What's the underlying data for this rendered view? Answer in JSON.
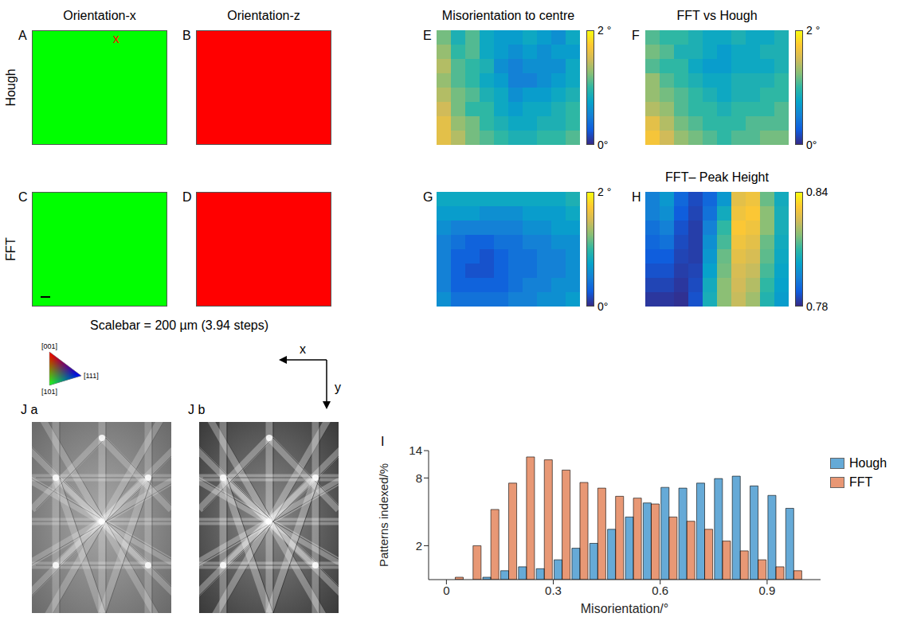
{
  "row_labels": [
    "Hough",
    "FFT"
  ],
  "scalebar": {
    "panel": "C",
    "text": "Scalebar = 200 µm (3.94 steps)"
  },
  "ipf_labels": [
    "[001]",
    "[101]",
    "[111]"
  ],
  "axis_arrows": [
    "x",
    "y"
  ],
  "patterns": [
    "J a",
    "J b"
  ],
  "chart_data": [
    {
      "label": "A",
      "type": "map",
      "title": "Orientation-x",
      "color": "#00ff00",
      "annotation": {
        "text": "x",
        "color": "#ff0000"
      }
    },
    {
      "label": "B",
      "type": "map",
      "title": "Orientation-z",
      "color": "#ff0000"
    },
    {
      "label": "C",
      "type": "map",
      "color": "#00ff00"
    },
    {
      "label": "D",
      "type": "map",
      "color": "#ff0000"
    },
    {
      "label": "E",
      "type": "heatmap",
      "title": "Misorientation to centre",
      "tick_labels": false,
      "cells": [
        [
          1.2,
          0.9,
          1.1,
          0.8,
          0.7,
          0.7,
          0.8,
          0.7,
          0.6,
          0.8
        ],
        [
          1.3,
          1.0,
          1.1,
          0.8,
          0.7,
          0.6,
          0.7,
          0.6,
          0.7,
          0.7
        ],
        [
          1.4,
          1.1,
          1.0,
          0.9,
          0.6,
          0.5,
          0.6,
          0.6,
          0.6,
          0.8
        ],
        [
          1.3,
          1.1,
          1.0,
          0.8,
          0.7,
          0.5,
          0.5,
          0.6,
          0.7,
          0.8
        ],
        [
          1.4,
          1.2,
          1.1,
          0.9,
          0.8,
          0.6,
          0.7,
          0.7,
          0.8,
          0.9
        ],
        [
          1.5,
          1.2,
          1.0,
          1.0,
          0.8,
          0.7,
          0.8,
          0.8,
          0.9,
          1.0
        ],
        [
          1.6,
          1.3,
          1.2,
          1.0,
          0.9,
          0.8,
          0.8,
          0.9,
          0.9,
          1.0
        ],
        [
          1.6,
          1.4,
          1.2,
          1.1,
          1.0,
          0.9,
          0.9,
          1.0,
          1.0,
          1.1
        ]
      ],
      "colorbar": {
        "range": [
          0,
          2
        ],
        "ticks": [
          {
            "value": 0,
            "label": "0°"
          },
          {
            "value": 2,
            "label": "2 °"
          }
        ]
      }
    },
    {
      "label": "F",
      "type": "heatmap",
      "title": "FFT vs Hough",
      "tick_labels": false,
      "cells": [
        [
          1.1,
          1.0,
          1.0,
          0.9,
          0.8,
          0.8,
          0.9,
          0.8,
          0.8,
          0.9
        ],
        [
          1.2,
          1.1,
          0.9,
          0.9,
          0.8,
          0.7,
          0.8,
          0.8,
          0.9,
          0.9
        ],
        [
          1.1,
          1.0,
          1.0,
          0.8,
          0.7,
          0.7,
          0.8,
          0.8,
          0.8,
          0.9
        ],
        [
          1.3,
          1.1,
          1.0,
          0.9,
          0.8,
          0.8,
          0.9,
          0.9,
          0.9,
          1.0
        ],
        [
          1.3,
          1.2,
          1.1,
          1.0,
          0.9,
          0.8,
          0.9,
          0.9,
          1.0,
          1.0
        ],
        [
          1.4,
          1.3,
          1.1,
          1.0,
          1.0,
          0.9,
          1.0,
          1.0,
          1.0,
          1.1
        ],
        [
          1.6,
          1.4,
          1.2,
          1.1,
          1.0,
          1.0,
          1.0,
          1.1,
          1.1,
          1.1
        ],
        [
          1.7,
          1.5,
          1.3,
          1.2,
          1.1,
          1.0,
          1.1,
          1.1,
          1.2,
          1.2
        ]
      ],
      "colorbar": {
        "range": [
          0,
          2
        ],
        "ticks": [
          {
            "value": 0,
            "label": "0°"
          },
          {
            "value": 2,
            "label": "2 °"
          }
        ]
      }
    },
    {
      "label": "G",
      "type": "heatmap",
      "tick_labels": false,
      "cells": [
        [
          0.8,
          0.8,
          0.8,
          0.8,
          0.8,
          0.8,
          0.8,
          0.8,
          0.8,
          0.9
        ],
        [
          0.7,
          0.7,
          0.7,
          0.6,
          0.6,
          0.6,
          0.7,
          0.7,
          0.7,
          0.8
        ],
        [
          0.6,
          0.5,
          0.5,
          0.5,
          0.5,
          0.5,
          0.6,
          0.6,
          0.7,
          0.7
        ],
        [
          0.5,
          0.4,
          0.3,
          0.3,
          0.4,
          0.4,
          0.5,
          0.5,
          0.6,
          0.6
        ],
        [
          0.5,
          0.3,
          0.3,
          0.2,
          0.3,
          0.4,
          0.4,
          0.5,
          0.5,
          0.6
        ],
        [
          0.5,
          0.3,
          0.2,
          0.2,
          0.3,
          0.4,
          0.4,
          0.5,
          0.5,
          0.6
        ],
        [
          0.5,
          0.3,
          0.3,
          0.3,
          0.3,
          0.4,
          0.5,
          0.5,
          0.6,
          0.6
        ],
        [
          0.6,
          0.4,
          0.4,
          0.4,
          0.4,
          0.5,
          0.5,
          0.6,
          0.6,
          0.7
        ]
      ],
      "colorbar": {
        "range": [
          0,
          2
        ],
        "ticks": [
          {
            "value": 0,
            "label": "0°"
          },
          {
            "value": 2,
            "label": "2 °"
          }
        ]
      }
    },
    {
      "label": "H",
      "type": "heatmap",
      "title": "FFT– Peak Height",
      "tick_labels": false,
      "cells": [
        [
          0.795,
          0.8,
          0.79,
          0.785,
          0.79,
          0.8,
          0.828,
          0.83,
          0.815,
          0.805
        ],
        [
          0.795,
          0.798,
          0.788,
          0.784,
          0.792,
          0.805,
          0.83,
          0.832,
          0.818,
          0.806
        ],
        [
          0.792,
          0.795,
          0.786,
          0.783,
          0.795,
          0.81,
          0.832,
          0.83,
          0.818,
          0.806
        ],
        [
          0.79,
          0.792,
          0.785,
          0.783,
          0.798,
          0.812,
          0.83,
          0.828,
          0.815,
          0.805
        ],
        [
          0.788,
          0.788,
          0.784,
          0.783,
          0.8,
          0.815,
          0.828,
          0.826,
          0.814,
          0.804
        ],
        [
          0.786,
          0.786,
          0.783,
          0.784,
          0.802,
          0.816,
          0.826,
          0.824,
          0.812,
          0.803
        ],
        [
          0.784,
          0.784,
          0.782,
          0.785,
          0.805,
          0.818,
          0.825,
          0.822,
          0.81,
          0.802
        ],
        [
          0.782,
          0.782,
          0.781,
          0.786,
          0.806,
          0.818,
          0.824,
          0.82,
          0.808,
          0.801
        ]
      ],
      "colorbar": {
        "range": [
          0.78,
          0.84
        ],
        "ticks": [
          0.78,
          0.84
        ]
      }
    },
    {
      "label": "I",
      "type": "histogram",
      "xlabel": "Misorientation/°",
      "ylabel": "Patterns indexed/%",
      "bins": [
        0,
        0.05,
        0.1,
        0.15,
        0.2,
        0.25,
        0.3,
        0.35,
        0.4,
        0.45,
        0.5,
        0.55,
        0.6,
        0.65,
        0.7,
        0.75,
        0.8,
        0.85,
        0.9,
        0.95,
        1.0
      ],
      "series": [
        {
          "name": "Hough",
          "color": "#0072BD",
          "values": [
            null,
            null,
            1.05,
            1.2,
            1.3,
            1.25,
            1.5,
            1.9,
            2.1,
            2.8,
            3.6,
            4.8,
            6.6,
            6.5,
            7.2,
            7.9,
            8.3,
            6.8,
            5.6,
            4.3
          ]
        },
        {
          "name": "FFT",
          "color": "#D95319",
          "values": [
            1.05,
            2.0,
            4.2,
            7.2,
            12.3,
            11.6,
            9.4,
            7.3,
            6.5,
            5.5,
            5.3,
            4.7,
            3.6,
            3.3,
            2.8,
            2.2,
            1.8,
            1.5,
            1.3,
            1.2
          ]
        }
      ],
      "xlim": [
        -0.05,
        1.05
      ],
      "ylim": [
        1,
        14
      ],
      "xticks": [
        0,
        0.3,
        0.6,
        0.9
      ],
      "yticks": [
        2,
        8,
        14
      ],
      "log": "y",
      "legend": "right"
    }
  ]
}
